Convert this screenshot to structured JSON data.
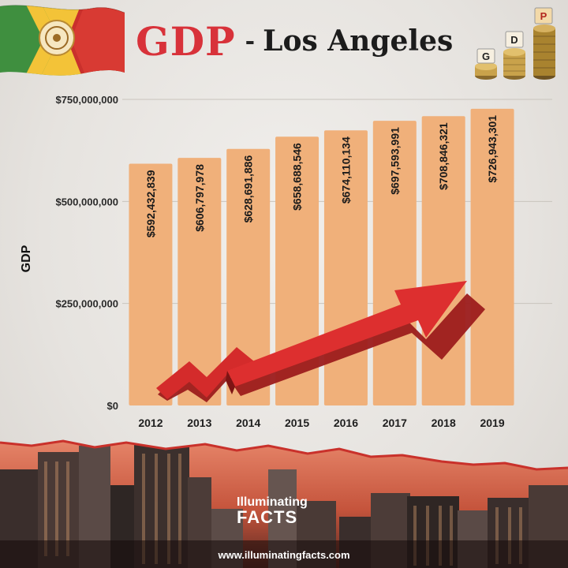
{
  "header": {
    "title_gdp": "GDP",
    "title_dash": "-",
    "title_city": "Los Angeles",
    "coin_letters": [
      "G",
      "D",
      "P"
    ]
  },
  "chart_data": {
    "type": "bar",
    "title": "GDP - Los Angeles",
    "xlabel": "",
    "ylabel": "GDP",
    "categories": [
      "2012",
      "2013",
      "2014",
      "2015",
      "2016",
      "2017",
      "2018",
      "2019"
    ],
    "values": [
      592432839,
      606797978,
      628691886,
      658688546,
      674110134,
      697593991,
      708846321,
      726943301
    ],
    "value_labels": [
      "$592,432,839",
      "$606,797,978",
      "$628,691,886",
      "$658,688,546",
      "$674,110,134",
      "$697,593,991",
      "$708,846,321",
      "$726,943,301"
    ],
    "ylim": [
      0,
      750000000
    ],
    "yticks": [
      0,
      250000000,
      500000000,
      750000000
    ],
    "ytick_labels": [
      "$0",
      "$250,000,000",
      "$500,000,000",
      "$750,000,000"
    ],
    "grid": true,
    "legend": "none"
  },
  "colors": {
    "bar": "#f0b07a",
    "title_red": "#d8323a",
    "arrow": "#d42b2b",
    "arrow_dark": "#9c1c1c",
    "grid": "#c9c4bd"
  },
  "footer": {
    "logo_line1": "Illuminating",
    "logo_line2": "FACTS",
    "website": "www.illuminatingfacts.com"
  }
}
